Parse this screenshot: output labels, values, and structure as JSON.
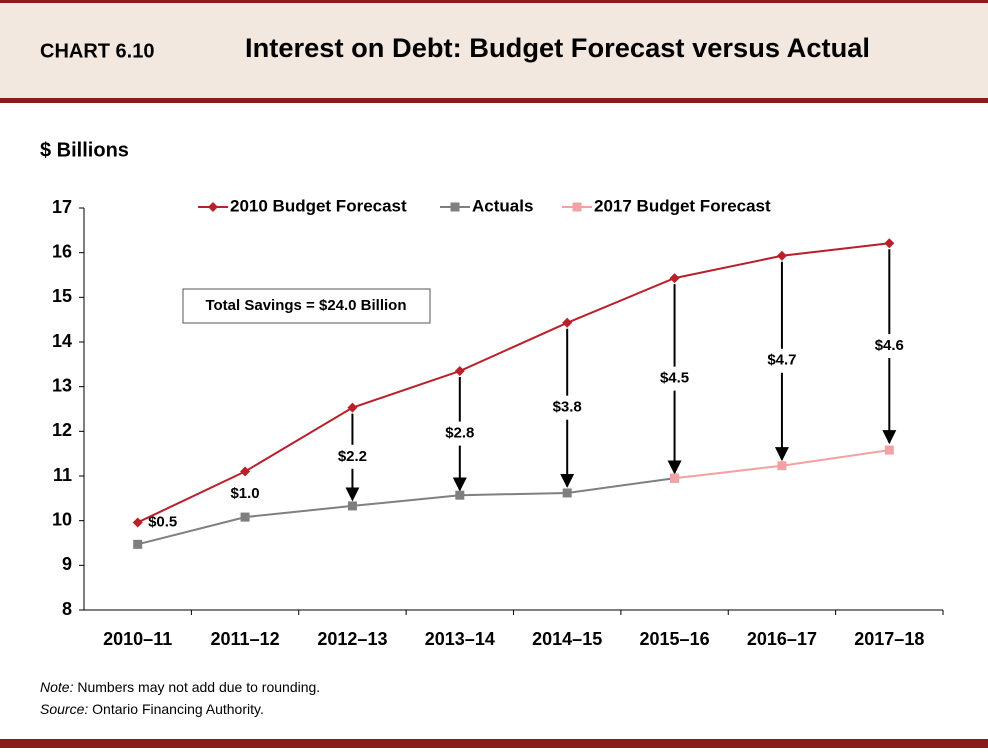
{
  "header": {
    "label": "CHART 6.10",
    "title": "Interest on Debt: Budget Forecast versus Actual"
  },
  "chart_data": {
    "type": "line",
    "y_axis_label": "$ Billions",
    "categories": [
      "2010–11",
      "2011–12",
      "2012–13",
      "2013–14",
      "2014–15",
      "2015–16",
      "2016–17",
      "2017–18"
    ],
    "series": [
      {
        "name": "2010 Budget Forecast",
        "color": "#b8202a",
        "marker": "diamond",
        "values": [
          9.96,
          11.1,
          12.53,
          13.35,
          14.43,
          15.43,
          15.93,
          16.21
        ]
      },
      {
        "name": "Actuals",
        "color": "#7f7f7f",
        "marker": "square",
        "values": [
          9.47,
          10.08,
          10.33,
          10.57,
          10.62,
          10.95,
          null,
          null
        ]
      },
      {
        "name": "2017 Budget Forecast",
        "color": "#f2a2a2",
        "marker": "square",
        "values": [
          null,
          null,
          null,
          null,
          null,
          10.95,
          11.23,
          11.58
        ]
      }
    ],
    "savings": {
      "values": [
        0.5,
        1.0,
        2.2,
        2.8,
        3.8,
        4.5,
        4.7,
        4.6
      ],
      "value_labels": [
        "$0.5",
        "$1.0",
        "$2.2",
        "$2.8",
        "$3.8",
        "$4.5",
        "$4.7",
        "$4.6"
      ]
    },
    "annotation": "Total Savings = $24.0 Billion",
    "ylim": [
      8,
      17
    ],
    "yticks": [
      8,
      9,
      10,
      11,
      12,
      13,
      14,
      15,
      16,
      17
    ]
  },
  "footer": {
    "note_label": "Note:",
    "note_text": "Numbers may not add due to rounding.",
    "source_label": "Source:",
    "source_text": "Ontario Financing Authority."
  }
}
